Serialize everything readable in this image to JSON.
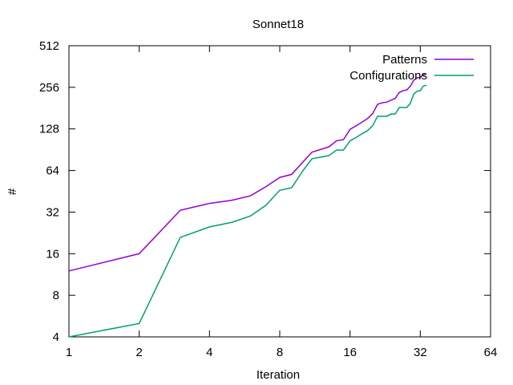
{
  "chart_data": {
    "type": "line",
    "title": "Sonnet18",
    "xlabel": "Iteration",
    "ylabel": "#",
    "x_scale": "log2",
    "y_scale": "log2",
    "xlim": [
      1,
      64
    ],
    "ylim": [
      4,
      512
    ],
    "x_ticks": [
      "1",
      "2",
      "4",
      "8",
      "16",
      "32",
      "64"
    ],
    "y_ticks": [
      "4",
      "8",
      "16",
      "32",
      "64",
      "128",
      "256",
      "512"
    ],
    "grid": false,
    "legend_position": "top-right",
    "series": [
      {
        "name": "Patterns",
        "color": "#9400d3",
        "points": [
          [
            1,
            12
          ],
          [
            2,
            16
          ],
          [
            3,
            33
          ],
          [
            4,
            37
          ],
          [
            5,
            39
          ],
          [
            6,
            42
          ],
          [
            7,
            49
          ],
          [
            8,
            57
          ],
          [
            9,
            60
          ],
          [
            10,
            73
          ],
          [
            11,
            87
          ],
          [
            12,
            91
          ],
          [
            13,
            95
          ],
          [
            14,
            105
          ],
          [
            15,
            107
          ],
          [
            16,
            127
          ],
          [
            17,
            135
          ],
          [
            18,
            143
          ],
          [
            19,
            152
          ],
          [
            20,
            165
          ],
          [
            21,
            193
          ],
          [
            22,
            198
          ],
          [
            23,
            200
          ],
          [
            24,
            207
          ],
          [
            25,
            213
          ],
          [
            26,
            235
          ],
          [
            27,
            242
          ],
          [
            28,
            245
          ],
          [
            29,
            260
          ],
          [
            30,
            288
          ],
          [
            31,
            300
          ],
          [
            32,
            302
          ],
          [
            33,
            315
          ],
          [
            34,
            320
          ]
        ]
      },
      {
        "name": "Configurations",
        "color": "#009e73",
        "points": [
          [
            1,
            4
          ],
          [
            2,
            5
          ],
          [
            3,
            21
          ],
          [
            4,
            25
          ],
          [
            5,
            27
          ],
          [
            6,
            30
          ],
          [
            7,
            36
          ],
          [
            8,
            46
          ],
          [
            9,
            48
          ],
          [
            10,
            63
          ],
          [
            11,
            78
          ],
          [
            12,
            80
          ],
          [
            13,
            82
          ],
          [
            14,
            90
          ],
          [
            15,
            90
          ],
          [
            16,
            105
          ],
          [
            17,
            111
          ],
          [
            18,
            118
          ],
          [
            19,
            124
          ],
          [
            20,
            135
          ],
          [
            21,
            158
          ],
          [
            22,
            158
          ],
          [
            23,
            158
          ],
          [
            24,
            164
          ],
          [
            25,
            164
          ],
          [
            26,
            183
          ],
          [
            27,
            183
          ],
          [
            28,
            183
          ],
          [
            29,
            196
          ],
          [
            30,
            229
          ],
          [
            31,
            240
          ],
          [
            32,
            242
          ],
          [
            33,
            262
          ],
          [
            34,
            265
          ]
        ]
      }
    ]
  }
}
